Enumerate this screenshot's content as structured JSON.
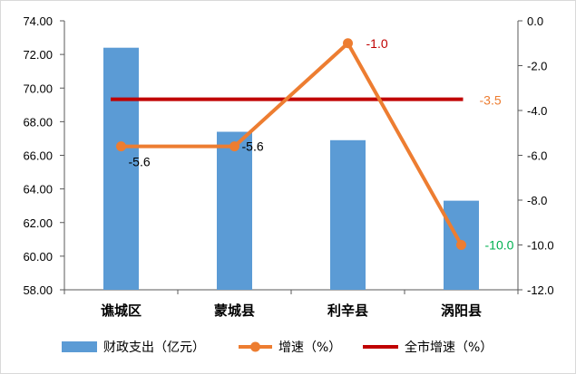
{
  "chart_data": {
    "type": "bar",
    "categories": [
      "谯城区",
      "蒙城县",
      "利辛县",
      "涡阳县"
    ],
    "series": [
      {
        "name": "财政支出（亿元）",
        "type": "bar",
        "axis": "left",
        "color": "#5b9bd5",
        "values": [
          72.4,
          67.4,
          66.9,
          63.3
        ]
      },
      {
        "name": "增速（%）",
        "type": "line",
        "axis": "right",
        "color": "#ed7d31",
        "values": [
          -5.6,
          -5.6,
          -1.0,
          -10.0
        ],
        "labels": [
          "-5.6",
          "-5.6",
          "-1.0",
          "-10.0"
        ],
        "label_colors": [
          "#000000",
          "#000000",
          "#c00000",
          "#00b050"
        ]
      },
      {
        "name": "全市增速（%）",
        "type": "line",
        "axis": "right",
        "color": "#c00000",
        "values": [
          -3.5,
          -3.5,
          -3.5,
          -3.5
        ],
        "label": "-3.5",
        "label_color": "#ed7d31"
      }
    ],
    "y_left": {
      "ylim": [
        58,
        74
      ],
      "ticks": [
        "58.00",
        "60.00",
        "62.00",
        "64.00",
        "66.00",
        "68.00",
        "70.00",
        "72.00",
        "74.00"
      ]
    },
    "y_right": {
      "ylim": [
        -12,
        0
      ],
      "ticks": [
        "0.0",
        "-2.0",
        "-4.0",
        "-6.0",
        "-8.0",
        "-10.0",
        "-12.0"
      ]
    },
    "grid": false,
    "legend": "bottom"
  }
}
